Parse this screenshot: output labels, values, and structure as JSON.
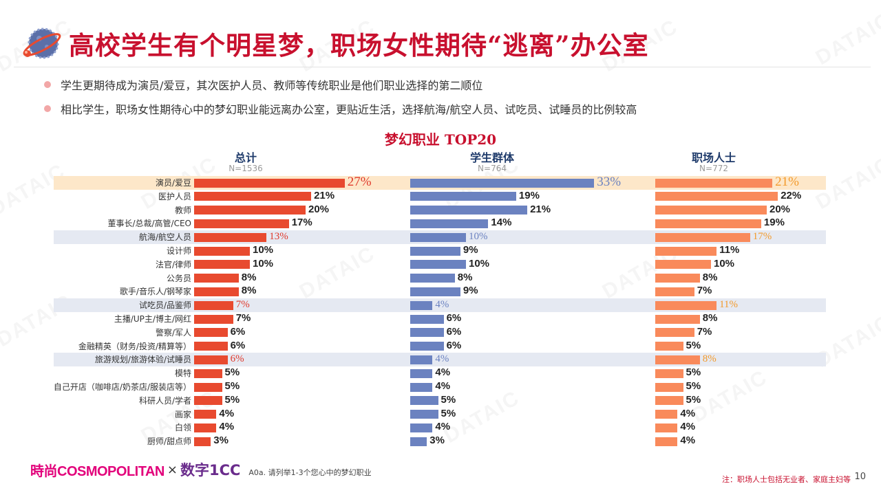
{
  "watermark_text": "DATAIC",
  "header": {
    "title": "高校学生有个明星梦，职场女性期待“逃离”办公室"
  },
  "bullets": [
    "学生更期待成为演员/爱豆，其次医护人员、教师等传统职业是他们职业选择的第二顺位",
    "相比学生，职场女性期待心中的梦幻职业能远离办公室，更贴近生活，选择航海/航空人员、试吃员、试睡员的比例较高"
  ],
  "colors": {
    "total": "#e84a2f",
    "student": "#6b82c0",
    "worker": "#f98a5b",
    "highlight_top": "#fde7c9",
    "highlight_row": "#e5e9f2",
    "emph_total": "#e0392b",
    "emph_student": "#6b82c0",
    "emph_worker": "#f39a2b"
  },
  "chart_data": {
    "type": "bar",
    "title": "梦幻职业 TOP20",
    "unit": "%",
    "categories": [
      "演员/爱豆",
      "医护人员",
      "教师",
      "董事长/总裁/高管/CEO",
      "航海/航空人员",
      "设计师",
      "法官/律师",
      "公务员",
      "歌手/音乐人/钢琴家",
      "试吃员/品鉴师",
      "主播/UP主/博主/网红",
      "警察/军人",
      "金融精英（财务/投资/精算等）",
      "旅游规划/旅游体验/试睡员",
      "模特",
      "自己开店（咖啡店/奶茶店/服装店等）",
      "科研人员/学者",
      "画家",
      "白领",
      "厨师/甜点师"
    ],
    "highlight_top_index": 0,
    "highlight_indices": [
      4,
      9,
      13
    ],
    "series": [
      {
        "name": "总计",
        "n": "N=1536",
        "values": [
          27,
          21,
          20,
          17,
          13,
          10,
          10,
          8,
          8,
          7,
          7,
          6,
          6,
          6,
          5,
          5,
          5,
          4,
          4,
          3
        ]
      },
      {
        "name": "学生群体",
        "n": "N=764",
        "values": [
          33,
          19,
          21,
          14,
          10,
          9,
          10,
          8,
          9,
          4,
          6,
          6,
          6,
          4,
          4,
          4,
          5,
          5,
          4,
          3
        ]
      },
      {
        "name": "职场人士",
        "n": "N=772",
        "values": [
          21,
          22,
          20,
          19,
          17,
          11,
          10,
          8,
          7,
          11,
          8,
          7,
          5,
          8,
          5,
          5,
          5,
          4,
          4,
          4
        ]
      }
    ]
  },
  "footer": {
    "logo1": "時尚COSMOPOLITAN",
    "times": "×",
    "logo2": "数字1CC",
    "question": "A0a. 请列举1-3个您心中的梦幻职业",
    "note": "注：职场人士包括无业者、家庭主妇等",
    "page": "10"
  }
}
